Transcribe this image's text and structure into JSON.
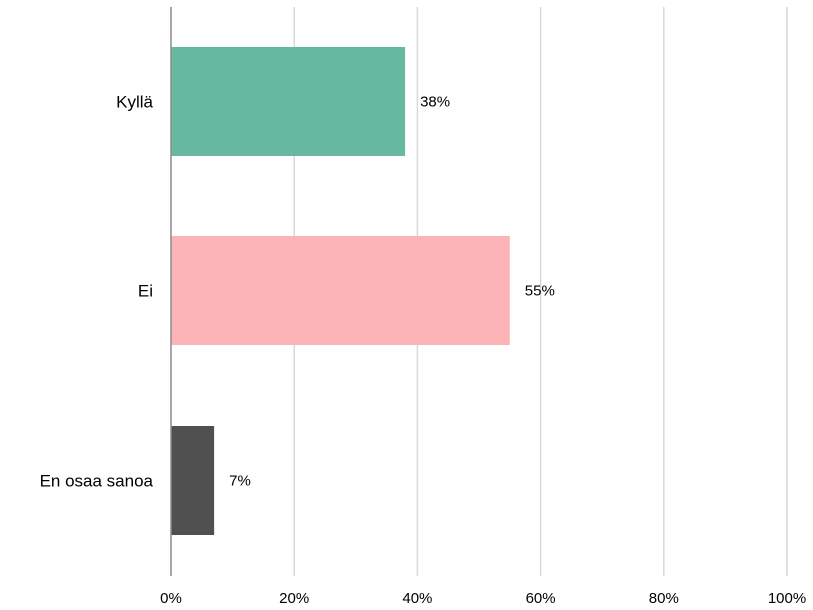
{
  "chart_data": {
    "type": "bar",
    "orientation": "horizontal",
    "title": "",
    "xlabel": "",
    "ylabel": "",
    "categories": [
      "Kyllä",
      "Ei",
      "En osaa sanoa"
    ],
    "values": [
      38,
      55,
      7
    ],
    "data_labels": [
      "38%",
      "55%",
      "7%"
    ],
    "colors": [
      "#66b8a0",
      "#fcb4b6",
      "#505050"
    ],
    "xlim": [
      0,
      100
    ],
    "xticks": [
      0,
      20,
      40,
      60,
      80,
      100
    ],
    "xtick_labels": [
      "0%",
      "20%",
      "40%",
      "60%",
      "80%",
      "100%"
    ],
    "grid": "vertical",
    "grid_color": "#d9d9d9",
    "axis_color": "#8c8c8c"
  }
}
